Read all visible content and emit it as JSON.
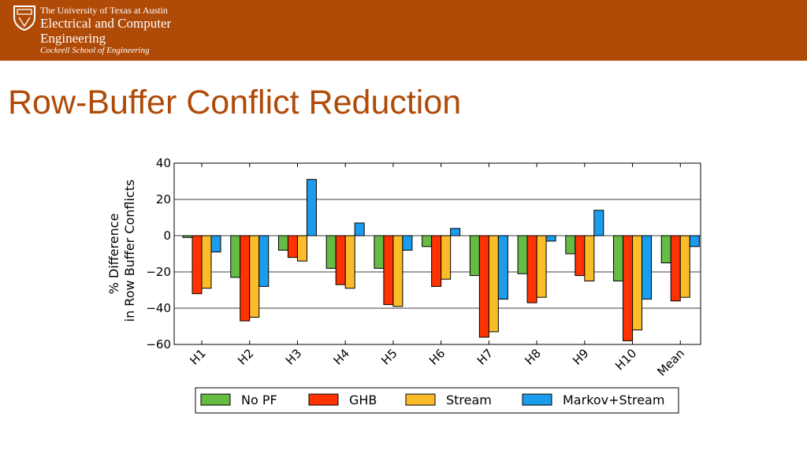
{
  "header": {
    "university": "The University of Texas at Austin",
    "department": "Electrical and Computer Engineering",
    "school": "Cockrell School of Engineering"
  },
  "slide": {
    "title": "Row-Buffer Conflict Reduction"
  },
  "chart_data": {
    "type": "bar",
    "title": "",
    "xlabel": "",
    "ylabel": "% Difference in Row Buffer Conflicts",
    "ylabel_lines": [
      "% Difference",
      "in Row Buffer Conflicts"
    ],
    "ylim": [
      -60,
      40
    ],
    "yticks": [
      40,
      20,
      0,
      -20,
      -40,
      -60
    ],
    "ytick_labels": [
      "40",
      "20",
      "0",
      "−20",
      "−40",
      "−60"
    ],
    "grid": true,
    "legend_position": "bottom",
    "categories": [
      "H1",
      "H2",
      "H3",
      "H4",
      "H5",
      "H6",
      "H7",
      "H8",
      "H9",
      "H10",
      "Mean"
    ],
    "series": [
      {
        "name": "No PF",
        "color": "#66bb44",
        "values": [
          -1,
          -23,
          -8,
          -18,
          -18,
          -6,
          -22,
          -21,
          -10,
          -25,
          -15
        ]
      },
      {
        "name": "GHB",
        "color": "#ff3300",
        "values": [
          -32,
          -47,
          -12,
          -27,
          -38,
          -28,
          -56,
          -37,
          -22,
          -58,
          -36
        ]
      },
      {
        "name": "Stream",
        "color": "#fbbc2a",
        "values": [
          -29,
          -45,
          -14,
          -29,
          -39,
          -24,
          -53,
          -34,
          -25,
          -52,
          -34
        ]
      },
      {
        "name": "Markov+Stream",
        "color": "#1c9cec",
        "values": [
          -9,
          -28,
          31,
          7,
          -8,
          4,
          -35,
          -3,
          14,
          -35,
          -6
        ]
      }
    ]
  }
}
